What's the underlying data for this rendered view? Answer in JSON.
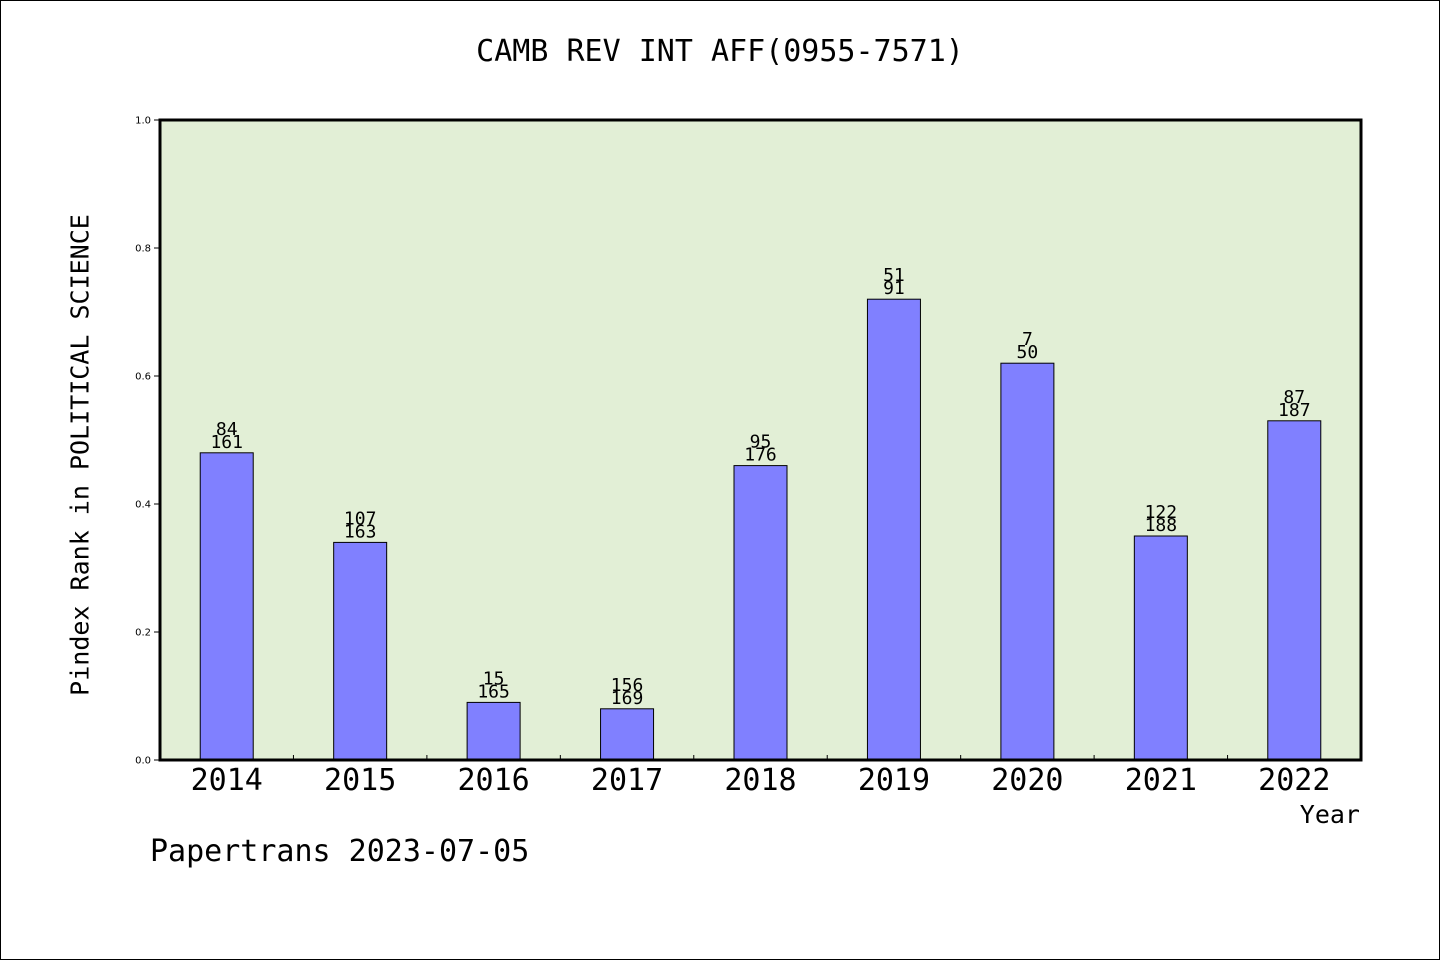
{
  "chart_data": {
    "type": "bar",
    "title": "CAMB REV INT AFF(0955-7571)",
    "xlabel": "Year",
    "ylabel": "Pindex Rank in POLITICAL SCIENCE",
    "ylim": [
      0,
      1.0
    ],
    "yticks": [
      "0.0",
      "0.2",
      "0.4",
      "0.6",
      "0.8",
      "1.0"
    ],
    "categories": [
      "2014",
      "2015",
      "2016",
      "2017",
      "2018",
      "2019",
      "2020",
      "2021",
      "2022"
    ],
    "values": [
      0.48,
      0.34,
      0.09,
      0.08,
      0.46,
      0.72,
      0.62,
      0.35,
      0.53
    ],
    "labels_top": [
      "84",
      "107",
      "15",
      "156",
      "95",
      "51",
      "7",
      "122",
      "87"
    ],
    "labels_bottom": [
      "161",
      "163",
      "165",
      "169",
      "176",
      "91",
      "50",
      "188",
      "187"
    ],
    "grid": false,
    "colors": {
      "bar_fill": "#8080ff",
      "plot_background": "#e2efd6",
      "axis": "#000000"
    }
  },
  "footer": {
    "credit": "Papertrans 2023-07-05"
  }
}
